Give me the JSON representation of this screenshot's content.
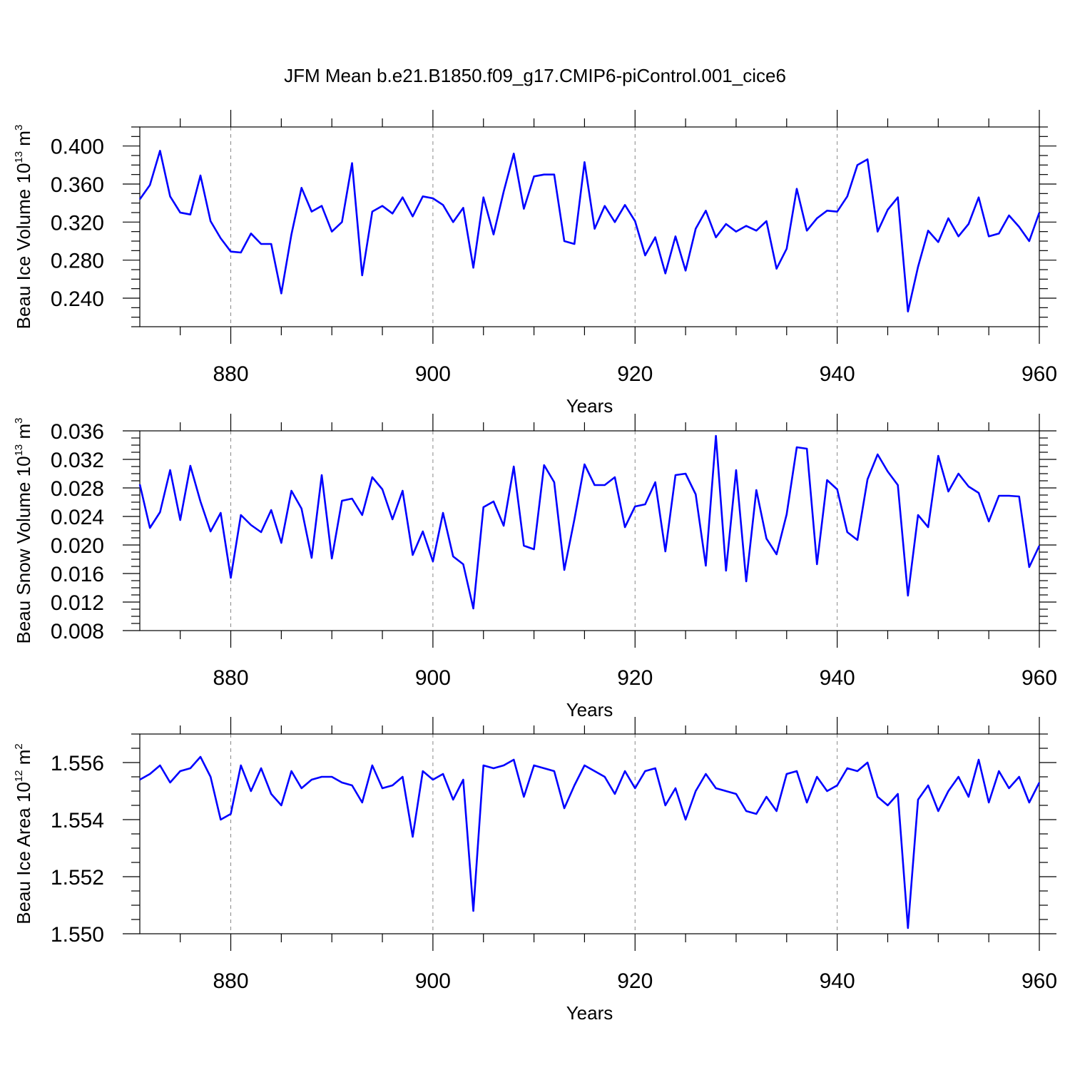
{
  "chart_data": {
    "type": "line",
    "title": "JFM Mean b.e21.B1850.f09_g17.CMIP6-piControl.001_cice6",
    "line_color": "#0000ff",
    "grid": "vertical dashed at major x ticks",
    "x_start": 871,
    "xlim": [
      871,
      960
    ],
    "x_ticks": [
      "880",
      "900",
      "920",
      "940",
      "960"
    ],
    "panels": [
      {
        "ylabel": {
          "prefix": "Beau Ice Volume 10",
          "exp": "13",
          "unit": " m",
          "unit_exp": "3"
        },
        "xlabel": "Years",
        "ylim": [
          0.21,
          0.42
        ],
        "y_ticks": [
          "0.240",
          "0.280",
          "0.320",
          "0.360",
          "0.400"
        ],
        "values": [
          0.344,
          0.359,
          0.395,
          0.347,
          0.33,
          0.328,
          0.369,
          0.321,
          0.303,
          0.289,
          0.288,
          0.308,
          0.297,
          0.297,
          0.245,
          0.307,
          0.356,
          0.331,
          0.337,
          0.31,
          0.32,
          0.382,
          0.264,
          0.331,
          0.337,
          0.329,
          0.346,
          0.326,
          0.347,
          0.345,
          0.338,
          0.32,
          0.335,
          0.272,
          0.346,
          0.307,
          0.352,
          0.392,
          0.334,
          0.368,
          0.37,
          0.37,
          0.3,
          0.297,
          0.383,
          0.313,
          0.337,
          0.32,
          0.338,
          0.321,
          0.285,
          0.304,
          0.266,
          0.305,
          0.269,
          0.313,
          0.332,
          0.304,
          0.318,
          0.31,
          0.316,
          0.311,
          0.321,
          0.271,
          0.292,
          0.355,
          0.311,
          0.324,
          0.332,
          0.331,
          0.347,
          0.38,
          0.386,
          0.31,
          0.333,
          0.346,
          0.226,
          0.273,
          0.311,
          0.299,
          0.324,
          0.305,
          0.318,
          0.346,
          0.305,
          0.308,
          0.327,
          0.315,
          0.3,
          0.33
        ]
      },
      {
        "ylabel": {
          "prefix": "Beau Snow Volume 10",
          "exp": "13",
          "unit": " m",
          "unit_exp": "3"
        },
        "xlabel": "Years",
        "ylim": [
          0.008,
          0.036
        ],
        "y_ticks": [
          "0.008",
          "0.012",
          "0.016",
          "0.020",
          "0.024",
          "0.028",
          "0.032",
          "0.036"
        ],
        "values": [
          0.0285,
          0.0224,
          0.0246,
          0.0305,
          0.0235,
          0.0311,
          0.0261,
          0.0219,
          0.0245,
          0.0154,
          0.0242,
          0.0228,
          0.0218,
          0.0249,
          0.0203,
          0.0276,
          0.0251,
          0.0182,
          0.0298,
          0.0181,
          0.0262,
          0.0265,
          0.0242,
          0.0295,
          0.0278,
          0.0236,
          0.0276,
          0.0186,
          0.0219,
          0.0177,
          0.0245,
          0.0184,
          0.0173,
          0.0111,
          0.0253,
          0.0261,
          0.0227,
          0.031,
          0.0199,
          0.0194,
          0.0312,
          0.0288,
          0.0165,
          0.0236,
          0.0313,
          0.0284,
          0.0284,
          0.0295,
          0.0225,
          0.0254,
          0.0257,
          0.0288,
          0.0191,
          0.0298,
          0.03,
          0.0271,
          0.0171,
          0.0353,
          0.0164,
          0.0305,
          0.0149,
          0.0277,
          0.0209,
          0.0187,
          0.0243,
          0.0337,
          0.0335,
          0.0173,
          0.0291,
          0.0278,
          0.0218,
          0.0207,
          0.0292,
          0.0327,
          0.0303,
          0.0284,
          0.0129,
          0.0242,
          0.0225,
          0.0325,
          0.0275,
          0.03,
          0.0282,
          0.0273,
          0.0233,
          0.0269,
          0.0269,
          0.0268,
          0.0169,
          0.0199
        ]
      },
      {
        "ylabel": {
          "prefix": "Beau Ice Area 10",
          "exp": "12",
          "unit": " m",
          "unit_exp": "2"
        },
        "xlabel": "Years",
        "ylim": [
          1.55,
          1.557
        ],
        "y_ticks": [
          "1.550",
          "1.552",
          "1.554",
          "1.556"
        ],
        "values": [
          1.5554,
          1.5556,
          1.5559,
          1.5553,
          1.5557,
          1.5558,
          1.5562,
          1.5555,
          1.554,
          1.5542,
          1.5559,
          1.555,
          1.5558,
          1.5549,
          1.5545,
          1.5557,
          1.5551,
          1.5554,
          1.5555,
          1.5555,
          1.5553,
          1.5552,
          1.5546,
          1.5559,
          1.5551,
          1.5552,
          1.5555,
          1.5534,
          1.5557,
          1.5554,
          1.5556,
          1.5547,
          1.5554,
          1.5508,
          1.5559,
          1.5558,
          1.5559,
          1.5561,
          1.5548,
          1.5559,
          1.5558,
          1.5557,
          1.5544,
          1.5552,
          1.5559,
          1.5557,
          1.5555,
          1.5549,
          1.5557,
          1.5551,
          1.5557,
          1.5558,
          1.5545,
          1.5551,
          1.554,
          1.555,
          1.5556,
          1.5551,
          1.555,
          1.5549,
          1.5543,
          1.5542,
          1.5548,
          1.5543,
          1.5556,
          1.5557,
          1.5546,
          1.5555,
          1.555,
          1.5552,
          1.5558,
          1.5557,
          1.556,
          1.5548,
          1.5545,
          1.5549,
          1.5502,
          1.5547,
          1.5552,
          1.5543,
          1.555,
          1.5555,
          1.5548,
          1.5561,
          1.5546,
          1.5557,
          1.5551,
          1.5555,
          1.5546,
          1.5553
        ]
      }
    ]
  }
}
